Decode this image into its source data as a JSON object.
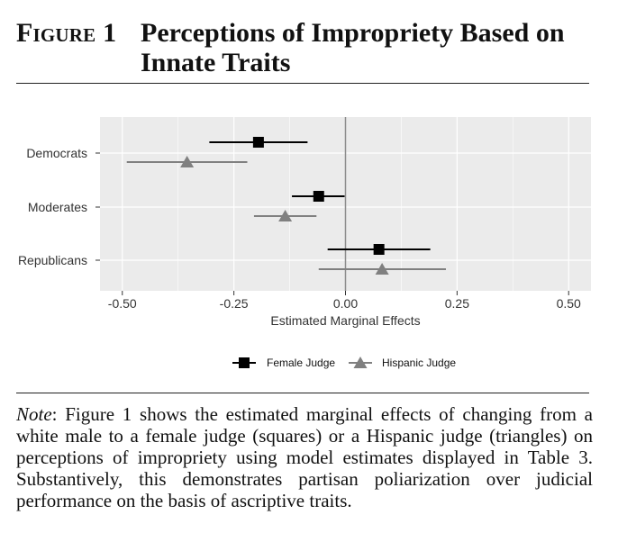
{
  "figure": {
    "label": "Figure 1",
    "title": "Perceptions of Impropriety Based on Innate Traits"
  },
  "note": {
    "lead": "Note",
    "text": ": Figure 1 shows the estimated marginal effects of changing from a white male to a female judge (squares) or a Hispanic judge (triangles) on perceptions of impropriety using model estimates displayed in Table 3. Substantively, this demonstrates partisan poliarization over judicial performance on the basis of ascriptive traits."
  },
  "chart_data": {
    "type": "scatter",
    "subtype": "coefficient-plot-with-intervals",
    "xlabel": "Estimated Marginal Effects",
    "ylabel": "",
    "xlim": [
      -0.55,
      0.55
    ],
    "x_ticks": [
      -0.5,
      -0.25,
      0.0,
      0.25,
      0.5
    ],
    "x_tick_labels": [
      "-0.50",
      "-0.25",
      "0.00",
      "0.25",
      "0.50"
    ],
    "categories": [
      "Democrats",
      "Moderates",
      "Republicans"
    ],
    "series": [
      {
        "name": "Female Judge",
        "marker": "square",
        "color": "#000000",
        "estimates": [
          -0.195,
          -0.06,
          0.075
        ],
        "lower": [
          -0.305,
          -0.12,
          -0.04
        ],
        "upper": [
          -0.085,
          -0.002,
          0.19
        ]
      },
      {
        "name": "Hispanic Judge",
        "marker": "triangle",
        "color": "#808080",
        "estimates": [
          -0.355,
          -0.135,
          0.082
        ],
        "lower": [
          -0.49,
          -0.205,
          -0.06
        ],
        "upper": [
          -0.22,
          -0.065,
          0.225
        ]
      }
    ],
    "reference_line": 0,
    "grid": true,
    "legend_position": "bottom"
  },
  "colors": {
    "panel_bg": "#ebebeb",
    "grid": "#ffffff",
    "reference_line": "#8c8c8c"
  }
}
